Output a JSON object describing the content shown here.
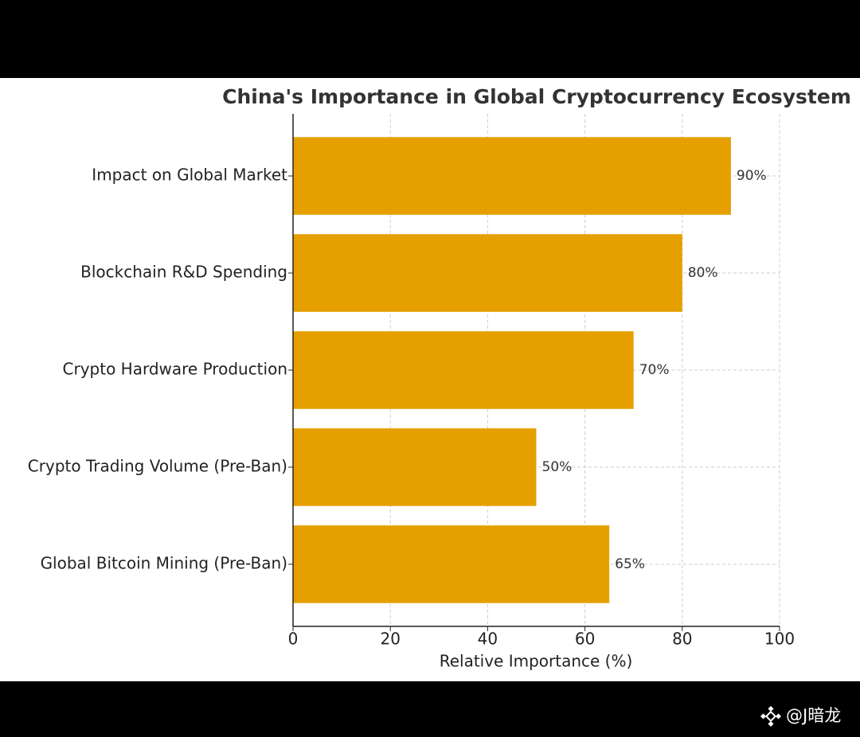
{
  "chart_data": {
    "type": "barh",
    "title": "China's Importance in Global Cryptocurrency Ecosystem",
    "x_label": "Relative Importance (%)",
    "categories": [
      "Impact on Global Market",
      "Blockchain R&D Spending",
      "Crypto Hardware Production",
      "Crypto Trading Volume (Pre-Ban)",
      "Global Bitcoin Mining (Pre-Ban)"
    ],
    "values": [
      90,
      80,
      70,
      50,
      65
    ],
    "value_labels": [
      "90%",
      "80%",
      "70%",
      "50%",
      "65%"
    ],
    "color": "#e5a000",
    "xlim": [
      0,
      100
    ],
    "xticks": [
      0,
      20,
      40,
      60,
      80,
      100
    ],
    "grid": true
  },
  "watermark": "@J暗龙"
}
